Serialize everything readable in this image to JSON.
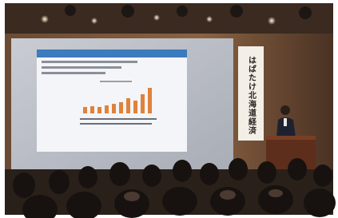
{
  "banner": {
    "title": "はばたけ北海道経済"
  }
}
